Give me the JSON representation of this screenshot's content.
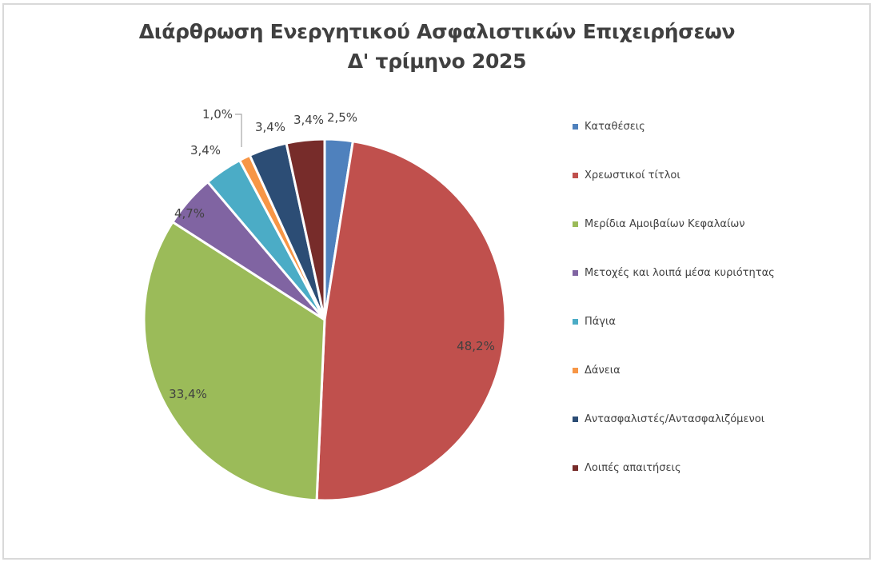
{
  "title": {
    "line1": "Διάρθρωση Ενεργητικού Ασφαλιστικών Επιχειρήσεων",
    "line2": "Δ' τρίμηνο 2025"
  },
  "chart_data": {
    "type": "pie",
    "title": "Διάρθρωση Ενεργητικού Ασφαλιστικών Επιχειρήσεων Δ' τρίμηνο 2025",
    "start_angle_deg": 0,
    "direction": "clockwise",
    "legend_position": "right",
    "categories": [
      "Καταθέσεις",
      "Χρεωστικοί τίτλοι",
      "Μερίδια Αμοιβαίων Κεφαλαίων",
      "Μετοχές και λοιπά μέσα κυριότητας",
      "Πάγια",
      "Δάνεια",
      "Αντασφαλιστές/Αντασφαλιζόμενοι",
      "Λοιπές απαιτήσεις"
    ],
    "values": [
      2.5,
      48.2,
      33.4,
      4.7,
      3.4,
      1.0,
      3.4,
      3.4
    ],
    "labels": [
      "2,5%",
      "48,2%",
      "33,4%",
      "4,7%",
      "3,4%",
      "1,0%",
      "3,4%",
      "3,4%"
    ],
    "colors": [
      "#4f81bd",
      "#c0504d",
      "#9bbb59",
      "#8064a2",
      "#4bacc6",
      "#f79646",
      "#2c4d75",
      "#772c2a"
    ],
    "unit": "%"
  },
  "legend": {
    "items": [
      {
        "label": "Καταθέσεις",
        "color": "#4f81bd"
      },
      {
        "label": "Χρεωστικοί τίτλοι",
        "color": "#c0504d"
      },
      {
        "label": "Μερίδια Αμοιβαίων Κεφαλαίων",
        "color": "#9bbb59"
      },
      {
        "label": "Μετοχές και λοιπά μέσα κυριότητας",
        "color": "#8064a2"
      },
      {
        "label": "Πάγια",
        "color": "#4bacc6"
      },
      {
        "label": "Δάνεια",
        "color": "#f79646"
      },
      {
        "label": "Αντασφαλιστές/Αντασφαλιζόμενοι",
        "color": "#2c4d75"
      },
      {
        "label": "Λοιπές απαιτήσεις",
        "color": "#772c2a"
      }
    ]
  }
}
